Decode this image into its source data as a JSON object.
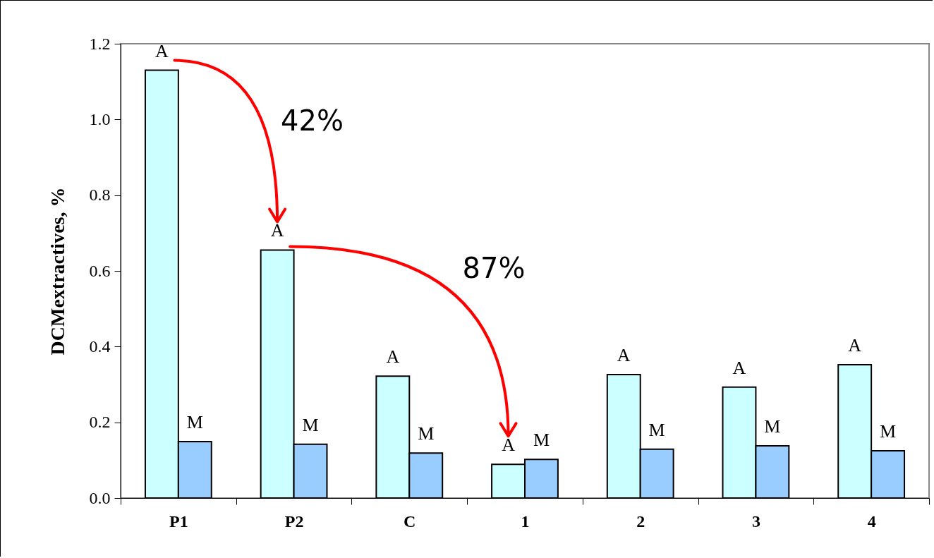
{
  "chart_data": {
    "type": "bar",
    "ylabel": "DCMextractives, %",
    "categories": [
      "P1",
      "P2",
      "C",
      "1",
      "2",
      "3",
      "4"
    ],
    "series": [
      {
        "color": "#ccffff",
        "values": [
          1.13,
          0.655,
          0.322,
          0.089,
          0.326,
          0.293,
          0.352
        ],
        "value_labels": [
          "A",
          "A",
          "A",
          "A",
          "A",
          "A",
          "A"
        ]
      },
      {
        "color": "#99ccff",
        "values": [
          0.149,
          0.142,
          0.119,
          0.102,
          0.129,
          0.138,
          0.125
        ],
        "value_labels": [
          "M",
          "M",
          "M",
          "M",
          "M",
          "M",
          "M"
        ]
      }
    ],
    "ylim": [
      0,
      1.2
    ],
    "yticks": [
      {
        "value": 0,
        "label": "0.0"
      },
      {
        "value": 0.2,
        "label": "0.2"
      },
      {
        "value": 0.4,
        "label": "0.4"
      },
      {
        "value": 0.6,
        "label": "0.6"
      },
      {
        "value": 0.8,
        "label": "0.8"
      },
      {
        "value": 1,
        "label": "1.0"
      },
      {
        "value": 1.2,
        "label": "1.2"
      }
    ],
    "annotations": [
      "42%",
      "87%"
    ]
  }
}
